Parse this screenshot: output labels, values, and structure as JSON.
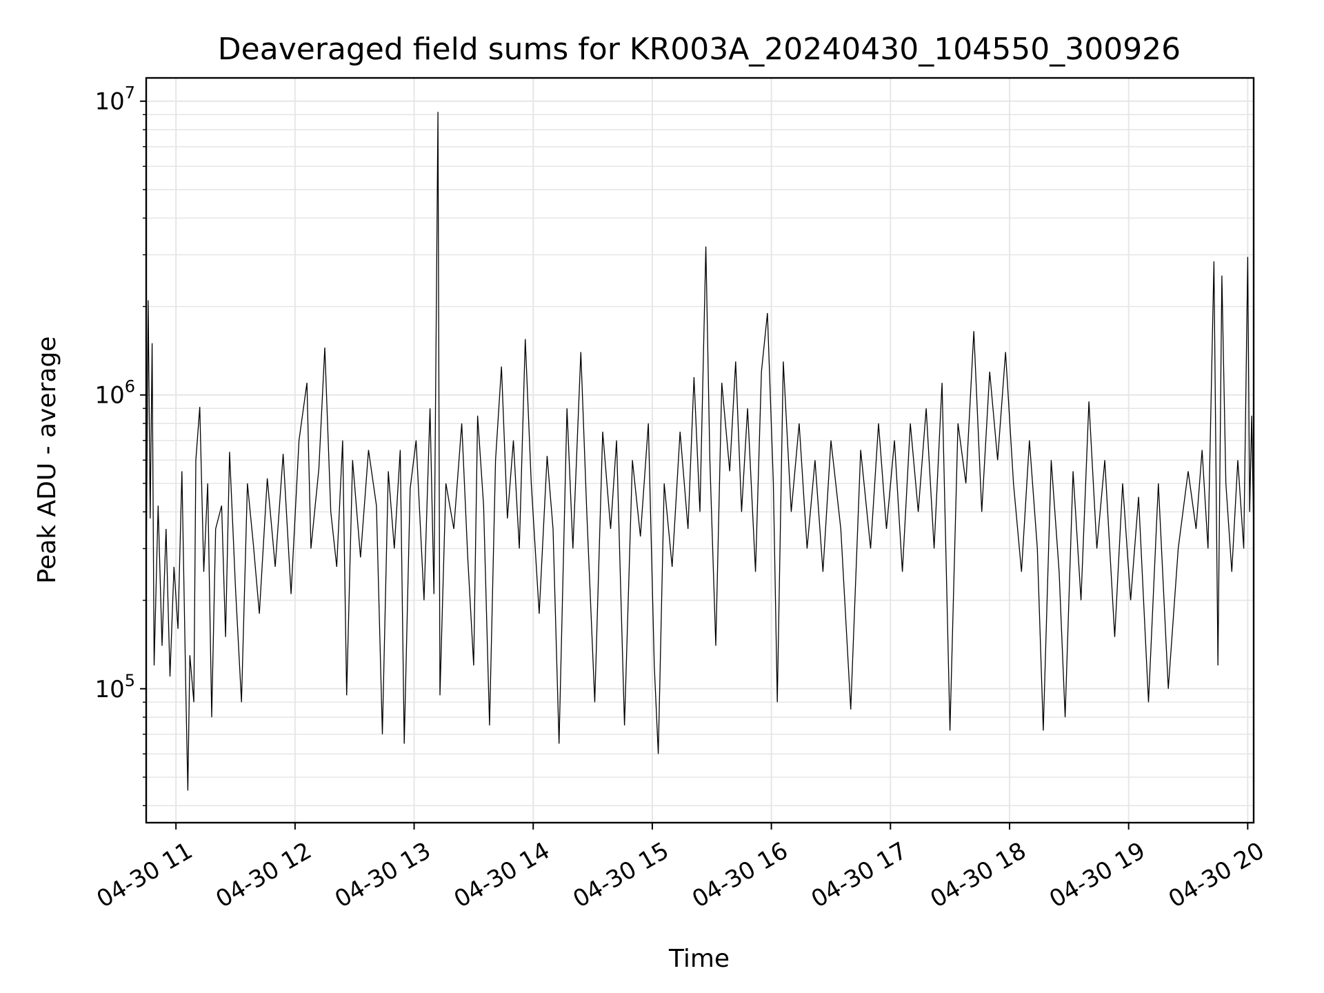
{
  "chart_data": {
    "type": "line",
    "title": "Deaveraged field sums for KR003A_20240430_104550_300926",
    "xlabel": "Time",
    "ylabel": "Peak ADU - average",
    "xlim": [
      "2024-04-30 10:45",
      "2024-04-30 20:03"
    ],
    "ylim": [
      35000,
      12000000
    ],
    "yscale": "log",
    "grid": true,
    "colors": {
      "line": "#000000",
      "grid": "#e6e6e6"
    },
    "x_ticks": [
      {
        "t": "2024-04-30 11:00",
        "label": "04-30 11"
      },
      {
        "t": "2024-04-30 12:00",
        "label": "04-30 12"
      },
      {
        "t": "2024-04-30 13:00",
        "label": "04-30 13"
      },
      {
        "t": "2024-04-30 14:00",
        "label": "04-30 14"
      },
      {
        "t": "2024-04-30 15:00",
        "label": "04-30 15"
      },
      {
        "t": "2024-04-30 16:00",
        "label": "04-30 16"
      },
      {
        "t": "2024-04-30 17:00",
        "label": "04-30 17"
      },
      {
        "t": "2024-04-30 18:00",
        "label": "04-30 18"
      },
      {
        "t": "2024-04-30 19:00",
        "label": "04-30 19"
      },
      {
        "t": "2024-04-30 20:00",
        "label": "04-30 20"
      }
    ],
    "y_ticks": [
      {
        "value": 100000,
        "base": "10",
        "exp": "5"
      },
      {
        "value": 1000000,
        "base": "10",
        "exp": "6"
      },
      {
        "value": 10000000,
        "base": "10",
        "exp": "7"
      }
    ],
    "series": [
      {
        "points": [
          [
            "2024-04-30 10:45",
            250000
          ],
          [
            "2024-04-30 10:46",
            2100000
          ],
          [
            "2024-04-30 10:47",
            380000
          ],
          [
            "2024-04-30 10:48",
            1500000
          ],
          [
            "2024-04-30 10:49",
            120000
          ],
          [
            "2024-04-30 10:51",
            420000
          ],
          [
            "2024-04-30 10:53",
            140000
          ],
          [
            "2024-04-30 10:55",
            350000
          ],
          [
            "2024-04-30 10:57",
            110000
          ],
          [
            "2024-04-30 10:59",
            260000
          ],
          [
            "2024-04-30 11:01",
            160000
          ],
          [
            "2024-04-30 11:03",
            550000
          ],
          [
            "2024-04-30 11:05",
            95000
          ],
          [
            "2024-04-30 11:06",
            45000
          ],
          [
            "2024-04-30 11:07",
            130000
          ],
          [
            "2024-04-30 11:09",
            90000
          ],
          [
            "2024-04-30 11:10",
            600000
          ],
          [
            "2024-04-30 11:12",
            910000
          ],
          [
            "2024-04-30 11:14",
            250000
          ],
          [
            "2024-04-30 11:16",
            500000
          ],
          [
            "2024-04-30 11:18",
            80000
          ],
          [
            "2024-04-30 11:20",
            350000
          ],
          [
            "2024-04-30 11:23",
            420000
          ],
          [
            "2024-04-30 11:25",
            150000
          ],
          [
            "2024-04-30 11:27",
            640000
          ],
          [
            "2024-04-30 11:30",
            220000
          ],
          [
            "2024-04-30 11:33",
            90000
          ],
          [
            "2024-04-30 11:36",
            500000
          ],
          [
            "2024-04-30 11:39",
            310000
          ],
          [
            "2024-04-30 11:42",
            180000
          ],
          [
            "2024-04-30 11:46",
            520000
          ],
          [
            "2024-04-30 11:50",
            260000
          ],
          [
            "2024-04-30 11:54",
            630000
          ],
          [
            "2024-04-30 11:58",
            210000
          ],
          [
            "2024-04-30 12:02",
            700000
          ],
          [
            "2024-04-30 12:06",
            1100000
          ],
          [
            "2024-04-30 12:08",
            300000
          ],
          [
            "2024-04-30 12:12",
            560000
          ],
          [
            "2024-04-30 12:15",
            1450000
          ],
          [
            "2024-04-30 12:18",
            400000
          ],
          [
            "2024-04-30 12:21",
            260000
          ],
          [
            "2024-04-30 12:24",
            700000
          ],
          [
            "2024-04-30 12:26",
            95000
          ],
          [
            "2024-04-30 12:29",
            600000
          ],
          [
            "2024-04-30 12:33",
            280000
          ],
          [
            "2024-04-30 12:37",
            650000
          ],
          [
            "2024-04-30 12:41",
            420000
          ],
          [
            "2024-04-30 12:44",
            70000
          ],
          [
            "2024-04-30 12:47",
            550000
          ],
          [
            "2024-04-30 12:50",
            300000
          ],
          [
            "2024-04-30 12:53",
            650000
          ],
          [
            "2024-04-30 12:55",
            65000
          ],
          [
            "2024-04-30 12:58",
            480000
          ],
          [
            "2024-04-30 13:01",
            700000
          ],
          [
            "2024-04-30 13:05",
            200000
          ],
          [
            "2024-04-30 13:08",
            900000
          ],
          [
            "2024-04-30 13:10",
            210000
          ],
          [
            "2024-04-30 13:12",
            9200000
          ],
          [
            "2024-04-30 13:13",
            95000
          ],
          [
            "2024-04-30 13:16",
            500000
          ],
          [
            "2024-04-30 13:20",
            350000
          ],
          [
            "2024-04-30 13:24",
            800000
          ],
          [
            "2024-04-30 13:27",
            280000
          ],
          [
            "2024-04-30 13:30",
            120000
          ],
          [
            "2024-04-30 13:32",
            850000
          ],
          [
            "2024-04-30 13:35",
            420000
          ],
          [
            "2024-04-30 13:38",
            75000
          ],
          [
            "2024-04-30 13:41",
            600000
          ],
          [
            "2024-04-30 13:44",
            1250000
          ],
          [
            "2024-04-30 13:47",
            380000
          ],
          [
            "2024-04-30 13:50",
            700000
          ],
          [
            "2024-04-30 13:53",
            300000
          ],
          [
            "2024-04-30 13:56",
            1550000
          ],
          [
            "2024-04-30 13:59",
            500000
          ],
          [
            "2024-04-30 14:03",
            180000
          ],
          [
            "2024-04-30 14:07",
            620000
          ],
          [
            "2024-04-30 14:10",
            350000
          ],
          [
            "2024-04-30 14:13",
            65000
          ],
          [
            "2024-04-30 14:17",
            900000
          ],
          [
            "2024-04-30 14:20",
            300000
          ],
          [
            "2024-04-30 14:24",
            1400000
          ],
          [
            "2024-04-30 14:27",
            400000
          ],
          [
            "2024-04-30 14:31",
            90000
          ],
          [
            "2024-04-30 14:35",
            750000
          ],
          [
            "2024-04-30 14:39",
            350000
          ],
          [
            "2024-04-30 14:42",
            700000
          ],
          [
            "2024-04-30 14:46",
            75000
          ],
          [
            "2024-04-30 14:50",
            600000
          ],
          [
            "2024-04-30 14:54",
            330000
          ],
          [
            "2024-04-30 14:58",
            800000
          ],
          [
            "2024-04-30 15:01",
            120000
          ],
          [
            "2024-04-30 15:03",
            60000
          ],
          [
            "2024-04-30 15:06",
            500000
          ],
          [
            "2024-04-30 15:10",
            260000
          ],
          [
            "2024-04-30 15:14",
            750000
          ],
          [
            "2024-04-30 15:18",
            350000
          ],
          [
            "2024-04-30 15:21",
            1150000
          ],
          [
            "2024-04-30 15:24",
            400000
          ],
          [
            "2024-04-30 15:27",
            3200000
          ],
          [
            "2024-04-30 15:29",
            600000
          ],
          [
            "2024-04-30 15:32",
            140000
          ],
          [
            "2024-04-30 15:35",
            1100000
          ],
          [
            "2024-04-30 15:39",
            550000
          ],
          [
            "2024-04-30 15:42",
            1300000
          ],
          [
            "2024-04-30 15:45",
            400000
          ],
          [
            "2024-04-30 15:48",
            900000
          ],
          [
            "2024-04-30 15:52",
            250000
          ],
          [
            "2024-04-30 15:55",
            1200000
          ],
          [
            "2024-04-30 15:58",
            1900000
          ],
          [
            "2024-04-30 16:01",
            500000
          ],
          [
            "2024-04-30 16:03",
            90000
          ],
          [
            "2024-04-30 16:06",
            1300000
          ],
          [
            "2024-04-30 16:10",
            400000
          ],
          [
            "2024-04-30 16:14",
            800000
          ],
          [
            "2024-04-30 16:18",
            300000
          ],
          [
            "2024-04-30 16:22",
            600000
          ],
          [
            "2024-04-30 16:26",
            250000
          ],
          [
            "2024-04-30 16:30",
            700000
          ],
          [
            "2024-04-30 16:35",
            350000
          ],
          [
            "2024-04-30 16:40",
            85000
          ],
          [
            "2024-04-30 16:45",
            650000
          ],
          [
            "2024-04-30 16:50",
            300000
          ],
          [
            "2024-04-30 16:54",
            800000
          ],
          [
            "2024-04-30 16:58",
            350000
          ],
          [
            "2024-04-30 17:02",
            700000
          ],
          [
            "2024-04-30 17:06",
            250000
          ],
          [
            "2024-04-30 17:10",
            800000
          ],
          [
            "2024-04-30 17:14",
            400000
          ],
          [
            "2024-04-30 17:18",
            900000
          ],
          [
            "2024-04-30 17:22",
            300000
          ],
          [
            "2024-04-30 17:26",
            1100000
          ],
          [
            "2024-04-30 17:30",
            72000
          ],
          [
            "2024-04-30 17:34",
            800000
          ],
          [
            "2024-04-30 17:38",
            500000
          ],
          [
            "2024-04-30 17:42",
            1650000
          ],
          [
            "2024-04-30 17:46",
            400000
          ],
          [
            "2024-04-30 17:50",
            1200000
          ],
          [
            "2024-04-30 17:54",
            600000
          ],
          [
            "2024-04-30 17:58",
            1400000
          ],
          [
            "2024-04-30 18:02",
            500000
          ],
          [
            "2024-04-30 18:06",
            250000
          ],
          [
            "2024-04-30 18:10",
            700000
          ],
          [
            "2024-04-30 18:14",
            300000
          ],
          [
            "2024-04-30 18:17",
            72000
          ],
          [
            "2024-04-30 18:21",
            600000
          ],
          [
            "2024-04-30 18:25",
            250000
          ],
          [
            "2024-04-30 18:28",
            80000
          ],
          [
            "2024-04-30 18:32",
            550000
          ],
          [
            "2024-04-30 18:36",
            200000
          ],
          [
            "2024-04-30 18:40",
            950000
          ],
          [
            "2024-04-30 18:44",
            300000
          ],
          [
            "2024-04-30 18:48",
            600000
          ],
          [
            "2024-04-30 18:53",
            150000
          ],
          [
            "2024-04-30 18:57",
            500000
          ],
          [
            "2024-04-30 19:01",
            200000
          ],
          [
            "2024-04-30 19:05",
            450000
          ],
          [
            "2024-04-30 19:10",
            90000
          ],
          [
            "2024-04-30 19:15",
            500000
          ],
          [
            "2024-04-30 19:20",
            100000
          ],
          [
            "2024-04-30 19:25",
            300000
          ],
          [
            "2024-04-30 19:30",
            550000
          ],
          [
            "2024-04-30 19:34",
            350000
          ],
          [
            "2024-04-30 19:37",
            650000
          ],
          [
            "2024-04-30 19:40",
            300000
          ],
          [
            "2024-04-30 19:43",
            2850000
          ],
          [
            "2024-04-30 19:45",
            120000
          ],
          [
            "2024-04-30 19:47",
            2550000
          ],
          [
            "2024-04-30 19:49",
            500000
          ],
          [
            "2024-04-30 19:52",
            250000
          ],
          [
            "2024-04-30 19:55",
            600000
          ],
          [
            "2024-04-30 19:58",
            300000
          ],
          [
            "2024-04-30 20:00",
            2950000
          ],
          [
            "2024-04-30 20:01",
            400000
          ],
          [
            "2024-04-30 20:02",
            850000
          ],
          [
            "2024-04-30 20:03",
            350000
          ]
        ]
      }
    ]
  }
}
